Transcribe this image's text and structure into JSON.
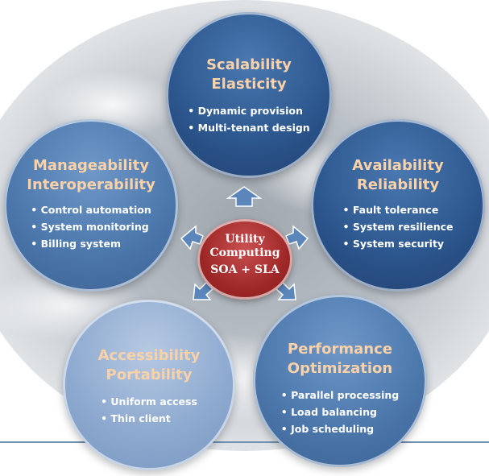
{
  "center": {
    "line1": "Utility",
    "line2": "Computing",
    "line3": "SOA + SLA"
  },
  "bubbles": {
    "scalability": {
      "title_line1": "Scalability",
      "title_line2": "Elasticity",
      "items": [
        "Dynamic provision",
        "Multi-tenant design"
      ]
    },
    "availability": {
      "title_line1": "Availability",
      "title_line2": "Reliability",
      "items": [
        "Fault tolerance",
        "System resilience",
        "System security"
      ]
    },
    "performance": {
      "title_line1": "Performance",
      "title_line2": "Optimization",
      "items": [
        "Parallel processing",
        "Load balancing",
        "Job scheduling"
      ]
    },
    "accessibility": {
      "title_line1": "Accessibility",
      "title_line2": "Portability",
      "items": [
        "Uniform access",
        "Thin client"
      ]
    },
    "manageability": {
      "title_line1": "Manageability",
      "title_line2": "Interoperability",
      "items": [
        "Control automation",
        "System monitoring",
        "Billing system"
      ]
    }
  },
  "colors": {
    "title_text": "#fbd1a8",
    "center_fill": "#9e2727",
    "arrow_fill": "#5b86bb"
  }
}
